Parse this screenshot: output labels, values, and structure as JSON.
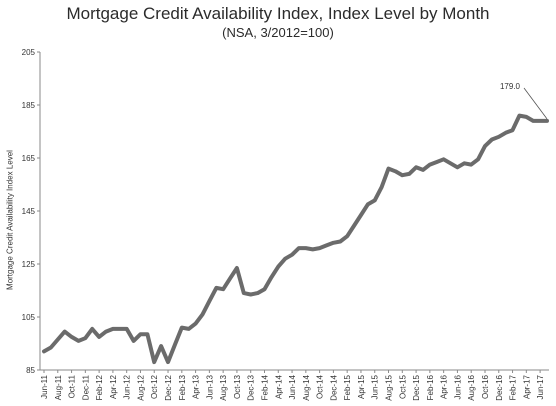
{
  "chart_data": {
    "type": "line",
    "title": "Mortgage Credit Availability Index, Index Level by Month",
    "subtitle": "(NSA, 3/2012=100)",
    "ylabel": "Mortgage Credit Availability Index Level",
    "xlabel": "",
    "ylim": [
      85,
      205
    ],
    "yticks": [
      85,
      105,
      125,
      145,
      165,
      185,
      205
    ],
    "x": [
      "Jun-11",
      "Jul-11",
      "Aug-11",
      "Sep-11",
      "Oct-11",
      "Nov-11",
      "Dec-11",
      "Jan-12",
      "Feb-12",
      "Mar-12",
      "Apr-12",
      "May-12",
      "Jun-12",
      "Jul-12",
      "Aug-12",
      "Sep-12",
      "Oct-12",
      "Nov-12",
      "Dec-12",
      "Jan-13",
      "Feb-13",
      "Mar-13",
      "Apr-13",
      "May-13",
      "Jun-13",
      "Jul-13",
      "Aug-13",
      "Sep-13",
      "Oct-13",
      "Nov-13",
      "Dec-13",
      "Jan-14",
      "Feb-14",
      "Mar-14",
      "Apr-14",
      "May-14",
      "Jun-14",
      "Jul-14",
      "Aug-14",
      "Sep-14",
      "Oct-14",
      "Nov-14",
      "Dec-14",
      "Jan-15",
      "Feb-15",
      "Mar-15",
      "Apr-15",
      "May-15",
      "Jun-15",
      "Jul-15",
      "Aug-15",
      "Sep-15",
      "Oct-15",
      "Nov-15",
      "Dec-15",
      "Jan-16",
      "Feb-16",
      "Mar-16",
      "Apr-16",
      "May-16",
      "Jun-16",
      "Jul-16",
      "Aug-16",
      "Sep-16",
      "Oct-16",
      "Nov-16",
      "Dec-16",
      "Jan-17",
      "Feb-17",
      "Mar-17",
      "Apr-17",
      "May-17",
      "Jun-17",
      "Jul-17"
    ],
    "xtick_labels": [
      "Jun-11",
      "Aug-11",
      "Oct-11",
      "Dec-11",
      "Feb-12",
      "Apr-12",
      "Jun-12",
      "Aug-12",
      "Oct-12",
      "Dec-12",
      "Feb-13",
      "Apr-13",
      "Jun-13",
      "Aug-13",
      "Oct-13",
      "Dec-13",
      "Feb-14",
      "Apr-14",
      "Jun-14",
      "Aug-14",
      "Oct-14",
      "Dec-14",
      "Feb-15",
      "Apr-15",
      "Jun-15",
      "Aug-15",
      "Oct-15",
      "Dec-15",
      "Feb-16",
      "Apr-16",
      "Jun-16",
      "Aug-16",
      "Oct-16",
      "Dec-16",
      "Feb-17",
      "Apr-17",
      "Jun-17"
    ],
    "series": [
      {
        "color": "#6b6b6b",
        "values": [
          92.0,
          93.5,
          96.5,
          99.5,
          97.5,
          96.0,
          97.0,
          100.5,
          97.5,
          99.5,
          100.5,
          100.5,
          100.5,
          96.0,
          98.5,
          98.5,
          88.0,
          94.0,
          88.0,
          94.5,
          101.0,
          100.5,
          102.5,
          106.0,
          111.0,
          116.0,
          115.5,
          119.5,
          123.5,
          114.0,
          113.5,
          114.0,
          115.5,
          120.0,
          124.0,
          127.0,
          128.5,
          131.0,
          131.0,
          130.5,
          131.0,
          132.0,
          133.0,
          133.5,
          135.5,
          139.5,
          143.5,
          147.5,
          149.0,
          154.0,
          161.0,
          160.0,
          158.5,
          159.0,
          161.5,
          160.5,
          162.5,
          163.5,
          164.5,
          163.0,
          161.5,
          163.0,
          162.5,
          164.5,
          169.5,
          172.0,
          173.0,
          174.5,
          175.5,
          181.0,
          180.5,
          179.0,
          179.0,
          179.0
        ]
      }
    ],
    "annotations": [
      {
        "text": "179.0",
        "x": "Jul-17",
        "y": 179.0
      }
    ],
    "grid": false,
    "legend": "none"
  }
}
